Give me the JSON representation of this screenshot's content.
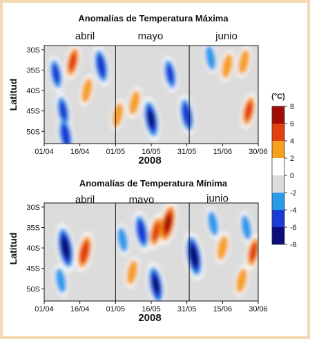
{
  "palette": {
    "frame": "#f3d9b3",
    "plot_bg": "#ffffff",
    "levels": [
      {
        "min": -8,
        "max": -6,
        "color": "#0a0d7a"
      },
      {
        "min": -6,
        "max": -4,
        "color": "#1b3bd6"
      },
      {
        "min": -4,
        "max": -2,
        "color": "#2a9be9"
      },
      {
        "min": -2,
        "max": 0,
        "color": "#dcdcdc"
      },
      {
        "min": 0,
        "max": 2,
        "color": "#ffffff"
      },
      {
        "min": 2,
        "max": 4,
        "color": "#f5a01e"
      },
      {
        "min": 4,
        "max": 6,
        "color": "#e2400f"
      },
      {
        "min": 6,
        "max": 8,
        "color": "#a10d05"
      }
    ]
  },
  "colorbar": {
    "unit_label": "(°C)",
    "ticks": [
      "8",
      "6",
      "4",
      "2",
      "0",
      "-2",
      "-4",
      "-6",
      "-8"
    ]
  },
  "chart_data": [
    {
      "type": "heatmap",
      "title": "Anomalías de Temperatura Máxima",
      "ylabel": "Latitud",
      "xlabel": "2008",
      "month_labels": [
        "abril",
        "mayo",
        "junio"
      ],
      "xtick_labels": [
        "01/04",
        "16/04",
        "01/05",
        "16/05",
        "31/05",
        "15/06",
        "30/06"
      ],
      "ytick_labels": [
        "30S",
        "35S",
        "40S",
        "45S",
        "50S"
      ],
      "ylim": [
        -53,
        -29
      ],
      "grid": false,
      "levels_degC": [
        -8,
        -6,
        -4,
        -2,
        0,
        2,
        4,
        6,
        8
      ],
      "features": [
        {
          "date": "2008-04-06",
          "lat": -36,
          "anomaly": -4
        },
        {
          "date": "2008-04-09",
          "lat": -45,
          "anomaly": -4
        },
        {
          "date": "2008-04-10",
          "lat": -51,
          "anomaly": -5
        },
        {
          "date": "2008-04-13",
          "lat": -33,
          "anomaly": 4
        },
        {
          "date": "2008-04-19",
          "lat": -40,
          "anomaly": 3
        },
        {
          "date": "2008-04-25",
          "lat": -34,
          "anomaly": -5
        },
        {
          "date": "2008-05-02",
          "lat": -46,
          "anomaly": 3
        },
        {
          "date": "2008-05-09",
          "lat": -43,
          "anomaly": 3
        },
        {
          "date": "2008-05-16",
          "lat": -47,
          "anomaly": -6
        },
        {
          "date": "2008-05-24",
          "lat": -36,
          "anomaly": -4
        },
        {
          "date": "2008-05-31",
          "lat": -46,
          "anomaly": -5
        },
        {
          "date": "2008-06-10",
          "lat": -32,
          "anomaly": -3
        },
        {
          "date": "2008-06-17",
          "lat": -34,
          "anomaly": 3
        },
        {
          "date": "2008-06-24",
          "lat": -33,
          "anomaly": 3
        },
        {
          "date": "2008-06-26",
          "lat": -45,
          "anomaly": 4
        }
      ]
    },
    {
      "type": "heatmap",
      "title": "Anomalías de Temperatura Mínima",
      "ylabel": "Latitud",
      "xlabel": "2008",
      "month_labels": [
        "abril",
        "mayo",
        "junio"
      ],
      "xtick_labels": [
        "01/04",
        "16/04",
        "01/05",
        "16/05",
        "31/05",
        "15/06",
        "30/06"
      ],
      "ytick_labels": [
        "30S",
        "35S",
        "40S",
        "45S",
        "50S"
      ],
      "ylim": [
        -53,
        -29
      ],
      "grid": false,
      "levels_degC": [
        -8,
        -6,
        -4,
        -2,
        0,
        2,
        4,
        6,
        8
      ],
      "features": [
        {
          "date": "2008-04-10",
          "lat": -40,
          "anomaly": -7
        },
        {
          "date": "2008-04-08",
          "lat": -48,
          "anomaly": -3
        },
        {
          "date": "2008-04-18",
          "lat": -41,
          "anomaly": 5
        },
        {
          "date": "2008-05-04",
          "lat": -38,
          "anomaly": -3
        },
        {
          "date": "2008-05-12",
          "lat": -36,
          "anomaly": -5
        },
        {
          "date": "2008-05-18",
          "lat": -36,
          "anomaly": 4
        },
        {
          "date": "2008-05-23",
          "lat": -34,
          "anomaly": 6
        },
        {
          "date": "2008-05-18",
          "lat": -49,
          "anomaly": -6
        },
        {
          "date": "2008-05-08",
          "lat": -46,
          "anomaly": 3
        },
        {
          "date": "2008-06-03",
          "lat": -42,
          "anomaly": -7
        },
        {
          "date": "2008-06-11",
          "lat": -34,
          "anomaly": -3
        },
        {
          "date": "2008-06-15",
          "lat": -40,
          "anomaly": 3
        },
        {
          "date": "2008-06-25",
          "lat": -35,
          "anomaly": -3
        },
        {
          "date": "2008-06-28",
          "lat": -41,
          "anomaly": 4
        },
        {
          "date": "2008-06-23",
          "lat": -48,
          "anomaly": 3
        }
      ]
    }
  ]
}
